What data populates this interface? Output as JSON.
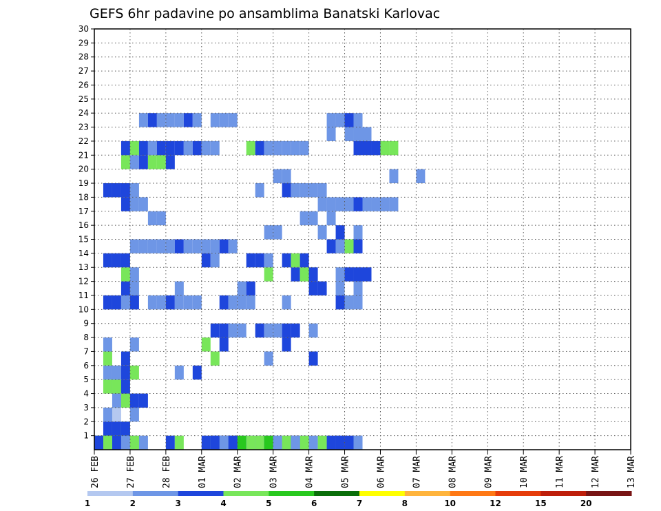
{
  "chart_data": {
    "type": "heatmap",
    "title": "GEFS 6hr padavine po ansamblima Banatski Karlovac",
    "xlabel": "",
    "ylabel": "",
    "x_tick_labels": [
      "26 FEB",
      "27 FEB",
      "28 FEB",
      "01 MAR",
      "02 MAR",
      "03 MAR",
      "04 MAR",
      "05 MAR",
      "06 MAR",
      "07 MAR",
      "08 MAR",
      "09 MAR",
      "10 MAR",
      "11 MAR",
      "12 MAR",
      "13 MAR"
    ],
    "x_range_days": [
      0,
      15
    ],
    "y_tick_labels": [
      "1",
      "2",
      "3",
      "4",
      "5",
      "6",
      "7",
      "8",
      "9",
      "10",
      "11",
      "12",
      "13",
      "14",
      "15",
      "16",
      "17",
      "18",
      "19",
      "20",
      "21",
      "22",
      "23",
      "24",
      "25",
      "26",
      "27",
      "28",
      "29",
      "30"
    ],
    "y_range": [
      0,
      30
    ],
    "grid": true,
    "legend": {
      "placement": "bottom",
      "labels": [
        "1",
        "2",
        "3",
        "4",
        "5",
        "6",
        "7",
        "8",
        "10",
        "12",
        "15",
        "20"
      ],
      "colors": [
        "#b4c8f0",
        "#6e96e6",
        "#1e46dc",
        "#78e65a",
        "#28c81e",
        "#0a6e0a",
        "#ffff00",
        "#ffb43c",
        "#ff7814",
        "#e63c0a",
        "#be1e0a",
        "#781414"
      ]
    },
    "cells": [
      [
        1,
        4,
        0,
        3
      ],
      [
        2,
        4,
        0,
        2
      ],
      [
        2,
        3,
        0,
        3
      ],
      [
        3,
        3,
        0,
        3
      ],
      [
        2,
        4,
        1,
        3
      ],
      [
        3,
        4,
        1,
        2
      ],
      [
        2,
        3,
        1,
        1
      ],
      [
        1,
        2,
        1,
        0
      ],
      [
        2,
        2,
        1,
        0
      ],
      [
        1,
        1,
        0,
        2
      ],
      [
        2,
        1,
        1,
        2
      ],
      [
        3,
        1,
        0,
        3
      ],
      [
        3,
        1,
        1,
        2
      ],
      [
        1,
        0,
        1,
        2
      ],
      [
        2,
        0,
        1,
        1
      ],
      [
        0,
        0,
        0,
        4
      ],
      [
        1,
        0,
        0,
        4
      ],
      [
        2,
        0,
        1,
        3
      ],
      [
        3,
        0,
        0,
        3
      ],
      [
        1,
        0,
        0,
        3
      ],
      [
        2,
        0,
        1,
        2
      ],
      [
        3,
        0,
        1,
        1
      ],
      [
        4,
        0,
        1,
        1
      ],
      [
        5,
        0,
        1,
        1
      ],
      [
        0,
        0,
        0,
        2
      ],
      [
        8,
        0,
        0,
        2
      ],
      [
        9,
        0,
        0,
        3
      ],
      [
        13,
        0,
        1,
        3
      ],
      [
        14,
        0,
        0,
        2
      ],
      [
        15,
        0,
        0,
        2
      ],
      [
        16,
        0,
        0,
        1
      ],
      [
        13,
        0,
        0,
        2
      ],
      [
        14,
        0,
        1,
        2
      ],
      [
        15,
        0,
        0,
        1
      ],
      [
        16,
        0,
        0,
        4
      ],
      [
        17,
        0,
        1,
        2
      ],
      [
        18,
        0,
        1,
        1
      ],
      [
        17,
        0,
        1,
        1
      ],
      [
        18,
        0,
        0,
        1
      ],
      [
        19,
        0,
        0,
        2
      ],
      [
        20,
        0,
        0,
        1
      ],
      [
        21,
        0,
        0,
        1
      ],
      [
        22,
        0,
        1,
        2
      ],
      [
        23,
        0,
        1,
        2
      ],
      [
        17,
        0,
        0,
        3
      ],
      [
        18,
        0,
        0,
        3
      ],
      [
        19,
        0,
        0,
        4
      ],
      [
        20,
        0,
        1,
        1
      ],
      [
        21,
        0,
        1,
        3
      ],
      [
        22,
        0,
        1,
        2
      ],
      [
        23,
        0,
        0,
        3
      ],
      [
        24,
        0,
        1,
        1
      ],
      [
        25,
        0,
        0,
        3
      ],
      [
        26,
        0,
        0,
        2
      ],
      [
        27,
        0,
        1,
        1
      ],
      [
        28,
        0,
        0,
        2
      ],
      [
        29,
        0,
        0,
        1
      ],
      [
        1,
        0,
        1,
        3
      ],
      [
        4,
        0,
        0,
        3
      ],
      [
        13,
        0,
        0,
        2
      ],
      [
        22,
        0,
        0,
        1
      ],
      [
        27,
        0,
        0,
        2
      ],
      [
        29,
        0,
        0,
        1
      ],
      [
        1,
        2,
        0,
        1
      ],
      [
        4,
        2,
        1,
        1
      ],
      [
        4,
        3,
        0,
        2
      ],
      [
        5,
        3,
        1,
        2
      ],
      [
        12,
        0,
        1,
        2
      ],
      [
        14,
        0,
        1,
        1
      ],
      [
        15,
        0,
        1,
        2
      ],
      [
        1,
        5,
        0,
        1
      ],
      [
        2,
        5,
        0,
        1
      ],
      [
        3,
        5,
        0,
        2
      ],
      [
        4,
        5,
        0,
        3
      ],
      [
        9,
        5,
        0,
        1
      ],
      [
        11,
        5,
        1,
        2
      ],
      [
        1,
        6,
        1,
        3
      ],
      [
        3,
        6,
        0,
        2
      ],
      [
        13,
        6,
        0,
        3
      ],
      [
        19,
        6,
        0,
        1
      ],
      [
        24,
        6,
        0,
        2
      ],
      [
        1,
        7,
        1,
        1
      ],
      [
        4,
        7,
        0,
        1
      ],
      [
        12,
        7,
        1,
        3
      ],
      [
        14,
        7,
        1,
        2
      ],
      [
        21,
        7,
        0,
        2
      ],
      [
        18,
        8,
        0,
        2
      ],
      [
        19,
        8,
        0,
        1
      ],
      [
        20,
        8,
        0,
        1
      ],
      [
        21,
        8,
        0,
        2
      ],
      [
        22,
        8,
        1,
        2
      ],
      [
        24,
        8,
        0,
        1
      ],
      [
        13,
        8,
        1,
        2
      ],
      [
        14,
        8,
        0,
        2
      ],
      [
        15,
        8,
        1,
        1
      ],
      [
        16,
        8,
        0,
        1
      ],
      [
        1,
        10,
        0,
        2
      ],
      [
        2,
        10,
        0,
        2
      ],
      [
        3,
        10,
        0,
        1
      ],
      [
        4,
        10,
        0,
        2
      ],
      [
        6,
        10,
        1,
        1
      ],
      [
        7,
        10,
        0,
        1
      ],
      [
        8,
        10,
        1,
        2
      ],
      [
        9,
        10,
        1,
        1
      ],
      [
        14,
        10,
        1,
        2
      ],
      [
        15,
        10,
        1,
        1
      ],
      [
        16,
        10,
        1,
        1
      ],
      [
        17,
        10,
        0,
        1
      ],
      [
        21,
        10,
        1,
        1
      ],
      [
        27,
        10,
        0,
        2
      ],
      [
        28,
        10,
        0,
        1
      ],
      [
        29,
        10,
        1,
        1
      ],
      [
        10,
        10,
        0,
        1
      ],
      [
        11,
        10,
        0,
        1
      ],
      [
        3,
        11,
        0,
        2
      ],
      [
        4,
        11,
        0,
        1
      ],
      [
        9,
        11,
        0,
        1
      ],
      [
        16,
        11,
        0,
        1
      ],
      [
        17,
        11,
        0,
        2
      ],
      [
        24,
        11,
        1,
        2
      ],
      [
        25,
        11,
        1,
        2
      ],
      [
        27,
        11,
        0,
        1
      ],
      [
        29,
        11,
        0,
        1
      ],
      [
        3,
        12,
        0,
        3
      ],
      [
        4,
        12,
        0,
        1
      ],
      [
        19,
        12,
        0,
        3
      ],
      [
        22,
        12,
        0,
        2
      ],
      [
        23,
        12,
        0,
        3
      ],
      [
        24,
        12,
        1,
        2
      ],
      [
        27,
        12,
        1,
        1
      ],
      [
        28,
        12,
        0,
        2
      ],
      [
        29,
        12,
        0,
        2
      ],
      [
        30,
        12,
        1,
        2
      ],
      [
        1,
        13,
        0,
        2
      ],
      [
        2,
        13,
        1,
        2
      ],
      [
        3,
        13,
        1,
        2
      ],
      [
        12,
        13,
        0,
        2
      ],
      [
        13,
        13,
        0,
        1
      ],
      [
        17,
        13,
        0,
        2
      ],
      [
        18,
        13,
        0,
        2
      ],
      [
        19,
        13,
        1,
        1
      ],
      [
        21,
        13,
        1,
        2
      ],
      [
        22,
        13,
        0,
        3
      ],
      [
        23,
        13,
        1,
        2
      ],
      [
        4,
        14,
        0,
        1
      ],
      [
        5,
        14,
        1,
        1
      ],
      [
        6,
        14,
        0,
        1
      ],
      [
        7,
        14,
        1,
        1
      ],
      [
        8,
        14,
        0,
        1
      ],
      [
        9,
        14,
        0,
        2
      ],
      [
        10,
        14,
        0,
        1
      ],
      [
        11,
        14,
        1,
        1
      ],
      [
        12,
        14,
        0,
        1
      ],
      [
        13,
        14,
        0,
        1
      ],
      [
        14,
        14,
        0,
        2
      ],
      [
        15,
        14,
        0,
        1
      ],
      [
        26,
        14,
        0,
        2
      ],
      [
        27,
        14,
        1,
        1
      ],
      [
        28,
        14,
        0,
        3
      ],
      [
        29,
        14,
        1,
        2
      ],
      [
        19,
        15,
        0,
        1
      ],
      [
        20,
        15,
        0,
        1
      ],
      [
        25,
        15,
        0,
        1
      ],
      [
        27,
        15,
        0,
        2
      ],
      [
        29,
        15,
        0,
        1
      ],
      [
        6,
        16,
        0,
        1
      ],
      [
        7,
        16,
        1,
        1
      ],
      [
        23,
        16,
        0,
        1
      ],
      [
        24,
        16,
        1,
        1
      ],
      [
        26,
        16,
        0,
        1
      ],
      [
        3,
        17,
        1,
        2
      ],
      [
        4,
        17,
        0,
        1
      ],
      [
        5,
        17,
        1,
        1
      ],
      [
        29,
        17,
        1,
        2
      ],
      [
        30,
        17,
        0,
        1
      ],
      [
        31,
        17,
        0,
        1
      ],
      [
        32,
        17,
        0,
        1
      ],
      [
        33,
        17,
        1,
        1
      ],
      [
        25,
        17,
        0,
        1
      ],
      [
        26,
        17,
        1,
        1
      ],
      [
        27,
        17,
        1,
        1
      ],
      [
        28,
        17,
        0,
        1
      ],
      [
        18,
        18,
        1,
        1
      ],
      [
        21,
        18,
        1,
        2
      ],
      [
        22,
        18,
        0,
        1
      ],
      [
        23,
        18,
        0,
        1
      ],
      [
        24,
        18,
        0,
        1
      ],
      [
        25,
        18,
        1,
        1
      ],
      [
        1,
        18,
        0,
        2
      ],
      [
        2,
        18,
        0,
        2
      ],
      [
        3,
        18,
        1,
        2
      ],
      [
        4,
        18,
        0,
        1
      ],
      [
        33,
        19,
        0,
        1
      ],
      [
        36,
        19,
        1,
        1
      ],
      [
        20,
        19,
        0,
        1
      ],
      [
        21,
        19,
        0,
        1
      ],
      [
        3,
        20,
        0,
        3
      ],
      [
        4,
        20,
        1,
        1
      ],
      [
        5,
        20,
        1,
        2
      ],
      [
        6,
        20,
        1,
        3
      ],
      [
        7,
        20,
        0,
        3
      ],
      [
        8,
        20,
        1,
        2
      ],
      [
        3,
        21,
        0,
        2
      ],
      [
        4,
        21,
        1,
        3
      ],
      [
        5,
        21,
        1,
        2
      ],
      [
        6,
        21,
        0,
        1
      ],
      [
        7,
        21,
        1,
        2
      ],
      [
        8,
        21,
        1,
        2
      ],
      [
        9,
        21,
        0,
        2
      ],
      [
        10,
        21,
        0,
        1
      ],
      [
        11,
        21,
        1,
        2
      ],
      [
        12,
        21,
        1,
        1
      ],
      [
        13,
        21,
        1,
        1
      ],
      [
        17,
        21,
        0,
        3
      ],
      [
        18,
        21,
        1,
        2
      ],
      [
        19,
        21,
        0,
        1
      ],
      [
        20,
        21,
        0,
        1
      ],
      [
        21,
        21,
        0,
        1
      ],
      [
        22,
        21,
        1,
        1
      ],
      [
        23,
        21,
        0,
        1
      ],
      [
        29,
        21,
        0,
        2
      ],
      [
        30,
        21,
        1,
        2
      ],
      [
        31,
        21,
        1,
        2
      ],
      [
        32,
        21,
        0,
        3
      ],
      [
        33,
        21,
        1,
        3
      ],
      [
        26,
        22,
        1,
        1
      ],
      [
        28,
        22,
        0,
        1
      ],
      [
        29,
        22,
        0,
        1
      ],
      [
        30,
        22,
        1,
        1
      ],
      [
        5,
        23,
        0,
        1
      ],
      [
        6,
        23,
        0,
        2
      ],
      [
        7,
        23,
        0,
        1
      ],
      [
        8,
        23,
        0,
        1
      ],
      [
        9,
        23,
        0,
        1
      ],
      [
        10,
        23,
        0,
        2
      ],
      [
        11,
        23,
        1,
        1
      ],
      [
        13,
        23,
        0,
        1
      ],
      [
        14,
        23,
        1,
        1
      ],
      [
        15,
        23,
        0,
        1
      ],
      [
        26,
        23,
        0,
        1
      ],
      [
        27,
        23,
        0,
        1
      ],
      [
        28,
        23,
        0,
        2
      ],
      [
        29,
        23,
        1,
        1
      ]
    ],
    "cell_layout_note": ""
  }
}
